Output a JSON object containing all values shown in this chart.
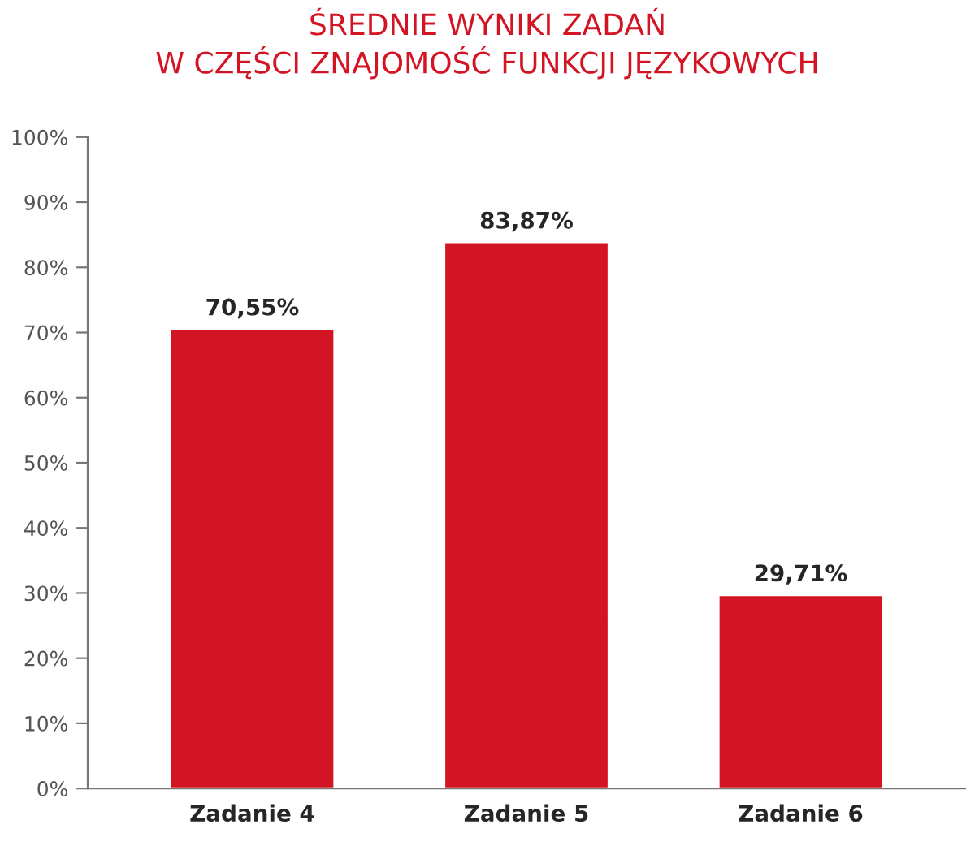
{
  "chart_data": {
    "type": "bar",
    "title": "ŚREDNIE WYNIKI ZADAŃ\nW CZĘŚCI ZNAJOMOŚĆ FUNKCJI JĘZYKOWYCH",
    "categories": [
      "Zadanie 4",
      "Zadanie 5",
      "Zadanie 6"
    ],
    "values": [
      70.55,
      83.87,
      29.71
    ],
    "value_labels": [
      "70,55%",
      "83,87%",
      "29,71%"
    ],
    "color": "#d31424",
    "ylim": [
      0,
      100
    ],
    "yticks": [
      {
        "value": 0,
        "label": "0%"
      },
      {
        "value": 10,
        "label": "10%"
      },
      {
        "value": 20,
        "label": "20%"
      },
      {
        "value": 30,
        "label": "30%"
      },
      {
        "value": 40,
        "label": "40%"
      },
      {
        "value": 50,
        "label": "50%"
      },
      {
        "value": 60,
        "label": "60%"
      },
      {
        "value": 70,
        "label": "70%"
      },
      {
        "value": 80,
        "label": "80%"
      },
      {
        "value": 90,
        "label": "90%"
      },
      {
        "value": 100,
        "label": "100%"
      }
    ],
    "grid": false
  }
}
